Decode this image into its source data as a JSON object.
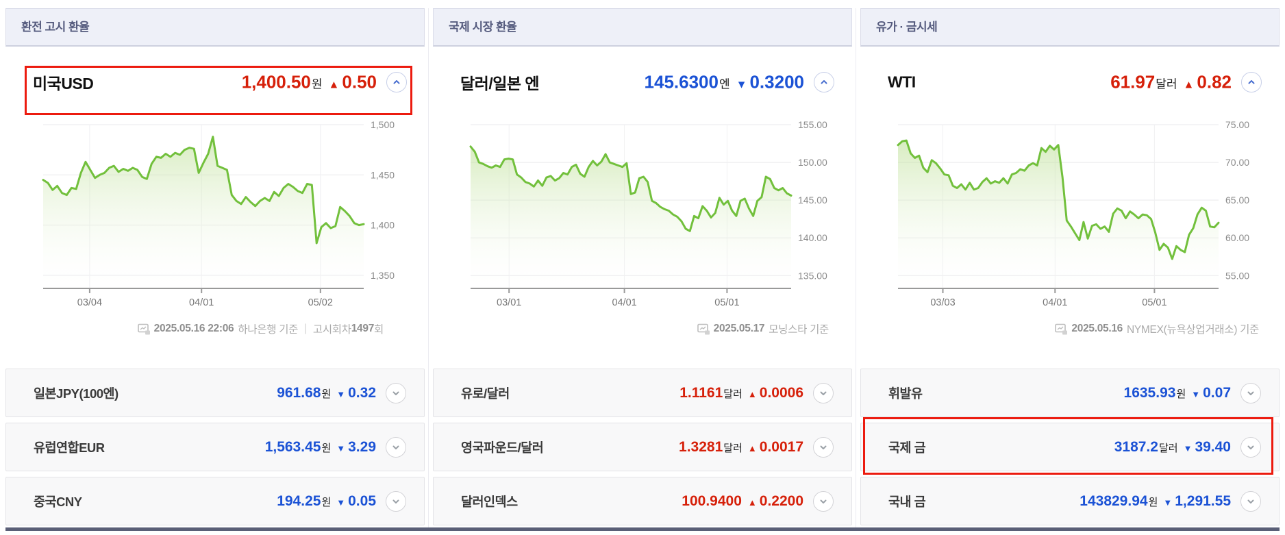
{
  "colors": {
    "up": "#d6200a",
    "down": "#1b52d5",
    "line": "#72c03c",
    "fill_top": "#b8dd8e",
    "fill_bottom": "#ffffff",
    "annotation": "#ec1b0f",
    "header_bg": "#eef0f8",
    "header_text": "#555b7e",
    "row_bg": "#f8f8f9",
    "bottom_bar": "#5a5f77"
  },
  "columns": [
    {
      "header": "환전 고시 환율",
      "main": {
        "label": "미국USD",
        "price": "1,400.50",
        "unit": "원",
        "arrow": "▲",
        "change": "0.50",
        "direction": "up"
      },
      "footer": {
        "date": "2025.05.16 22:06",
        "source": "하나은행 기준",
        "divider": "|",
        "round_label": "고시회차",
        "round_value": "1497",
        "round_unit": "회"
      },
      "rows": [
        {
          "label": "일본JPY(100엔)",
          "price": "961.68",
          "unit": "원",
          "arrow": "▼",
          "change": "0.32",
          "direction": "down"
        },
        {
          "label": "유럽연합EUR",
          "price": "1,563.45",
          "unit": "원",
          "arrow": "▼",
          "change": "3.29",
          "direction": "down"
        },
        {
          "label": "중국CNY",
          "price": "194.25",
          "unit": "원",
          "arrow": "▼",
          "change": "0.05",
          "direction": "down"
        }
      ]
    },
    {
      "header": "국제 시장 환율",
      "main": {
        "label": "달러/일본 엔",
        "price": "145.6300",
        "unit": "엔",
        "arrow": "▼",
        "change": "0.3200",
        "direction": "down"
      },
      "footer": {
        "date": "2025.05.17",
        "source": "모닝스타 기준"
      },
      "rows": [
        {
          "label": "유로/달러",
          "price": "1.1161",
          "unit": "달러",
          "arrow": "▲",
          "change": "0.0006",
          "direction": "up"
        },
        {
          "label": "영국파운드/달러",
          "price": "1.3281",
          "unit": "달러",
          "arrow": "▲",
          "change": "0.0017",
          "direction": "up"
        },
        {
          "label": "달러인덱스",
          "price": "100.9400",
          "unit": "",
          "arrow": "▲",
          "change": "0.2200",
          "direction": "up"
        }
      ]
    },
    {
      "header": "유가 · 금시세",
      "main": {
        "label": "WTI",
        "price": "61.97",
        "unit": "달러",
        "arrow": "▲",
        "change": "0.82",
        "direction": "up"
      },
      "footer": {
        "date": "2025.05.16",
        "source": "NYMEX(뉴욕상업거래소) 기준"
      },
      "rows": [
        {
          "label": "휘발유",
          "price": "1635.93",
          "unit": "원",
          "arrow": "▼",
          "change": "0.07",
          "direction": "down"
        },
        {
          "label": "국제 금",
          "price": "3187.2",
          "unit": "달러",
          "arrow": "▼",
          "change": "39.40",
          "direction": "down"
        },
        {
          "label": "국내 금",
          "price": "143829.94",
          "unit": "원",
          "arrow": "▼",
          "change": "1,291.55",
          "direction": "down"
        }
      ]
    }
  ],
  "chart_data": [
    {
      "type": "area",
      "title": "미국USD 환율 추이",
      "xlabel": "",
      "ylabel": "",
      "ylim": [
        1337,
        1500
      ],
      "grid": true,
      "y_ticks": [
        "1,500",
        "1,450",
        "1,400",
        "1,350"
      ],
      "y_tick_values": [
        1500,
        1450,
        1400,
        1350
      ],
      "x_ticks": [
        {
          "label": "03/04",
          "pos": 0.145
        },
        {
          "label": "04/01",
          "pos": 0.494
        },
        {
          "label": "05/02",
          "pos": 0.865
        }
      ],
      "values": [
        1445,
        1442,
        1435,
        1439,
        1432,
        1430,
        1437,
        1436,
        1452,
        1463,
        1455,
        1447,
        1450,
        1452,
        1457,
        1459,
        1453,
        1456,
        1454,
        1457,
        1455,
        1448,
        1446,
        1461,
        1468,
        1467,
        1471,
        1468,
        1472,
        1470,
        1475,
        1477,
        1476,
        1452,
        1462,
        1471,
        1488,
        1459,
        1457,
        1455,
        1430,
        1424,
        1421,
        1428,
        1423,
        1419,
        1424,
        1427,
        1424,
        1433,
        1429,
        1437,
        1441,
        1438,
        1434,
        1432,
        1441,
        1440,
        1382,
        1398,
        1402,
        1397,
        1399,
        1418,
        1414,
        1409,
        1402,
        1400,
        1401
      ]
    },
    {
      "type": "area",
      "title": "달러/일본 엔 환율 추이",
      "xlabel": "",
      "ylabel": "",
      "ylim": [
        133.3,
        155
      ],
      "grid": true,
      "y_ticks": [
        "155.00",
        "150.00",
        "145.00",
        "140.00",
        "135.00"
      ],
      "y_tick_values": [
        155,
        150,
        145,
        140,
        135
      ],
      "x_ticks": [
        {
          "label": "03/01",
          "pos": 0.12
        },
        {
          "label": "04/01",
          "pos": 0.48
        },
        {
          "label": "05/01",
          "pos": 0.8
        }
      ],
      "values": [
        152.1,
        151.4,
        150.0,
        149.8,
        149.5,
        149.3,
        149.6,
        149.4,
        150.4,
        150.5,
        150.4,
        148.4,
        148.0,
        147.4,
        147.2,
        146.8,
        147.6,
        146.9,
        148.0,
        148.2,
        147.6,
        147.9,
        148.6,
        148.4,
        149.4,
        149.7,
        148.5,
        148.1,
        149.4,
        150.2,
        149.6,
        150.1,
        151.1,
        150.0,
        149.8,
        149.6,
        149.4,
        149.9,
        145.8,
        146.0,
        147.9,
        148.1,
        147.4,
        144.9,
        144.6,
        144.1,
        143.8,
        143.6,
        143.1,
        142.8,
        142.2,
        141.2,
        140.9,
        142.9,
        142.6,
        144.2,
        143.6,
        142.7,
        143.3,
        145.3,
        144.4,
        144.9,
        143.6,
        142.9,
        144.9,
        145.2,
        143.9,
        142.9,
        144.9,
        145.4,
        148.1,
        147.8,
        146.6,
        146.3,
        146.6,
        145.9,
        145.6
      ]
    },
    {
      "type": "area",
      "title": "WTI 유가 추이",
      "xlabel": "",
      "ylabel": "",
      "ylim": [
        53.3,
        75
      ],
      "grid": true,
      "y_ticks": [
        "75.00",
        "70.00",
        "65.00",
        "60.00",
        "55.00"
      ],
      "y_tick_values": [
        75,
        70,
        65,
        60,
        55
      ],
      "x_ticks": [
        {
          "label": "03/03",
          "pos": 0.14
        },
        {
          "label": "04/01",
          "pos": 0.49
        },
        {
          "label": "05/01",
          "pos": 0.8
        }
      ],
      "values": [
        72.3,
        72.8,
        72.9,
        71.2,
        70.6,
        70.9,
        69.3,
        68.7,
        70.3,
        69.9,
        69.2,
        68.4,
        68.3,
        66.9,
        66.6,
        67.1,
        66.4,
        67.3,
        66.4,
        66.6,
        67.4,
        67.9,
        67.2,
        67.5,
        67.3,
        67.9,
        67.2,
        68.4,
        68.6,
        69.1,
        68.9,
        69.6,
        69.9,
        69.6,
        71.9,
        71.4,
        72.2,
        71.7,
        72.3,
        68.0,
        62.3,
        61.5,
        60.6,
        59.7,
        62.1,
        59.9,
        61.6,
        61.8,
        61.2,
        61.5,
        60.8,
        63.2,
        63.9,
        63.6,
        62.6,
        63.5,
        63.1,
        62.6,
        63.1,
        63.0,
        62.5,
        60.7,
        58.4,
        59.2,
        58.7,
        57.2,
        58.9,
        58.4,
        58.1,
        60.4,
        61.3,
        63.1,
        64.0,
        63.6,
        61.5,
        61.4,
        62.0
      ]
    }
  ]
}
